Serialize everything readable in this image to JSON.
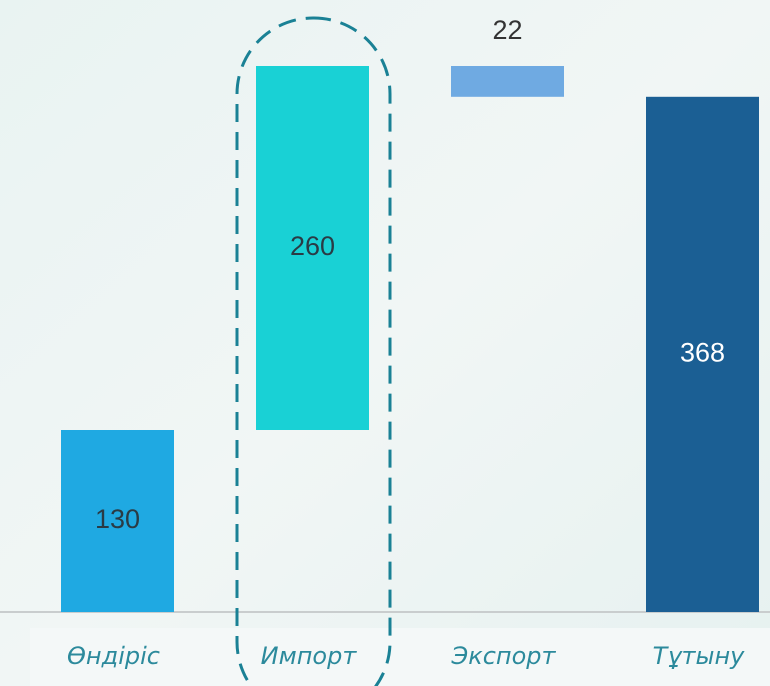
{
  "chart_data": {
    "type": "waterfall",
    "categories": [
      "Өндіріс",
      "Импорт",
      "Экспорт",
      "Тұтыну"
    ],
    "values": [
      130,
      260,
      -22,
      368
    ],
    "value_labels": [
      "130",
      "260",
      "22",
      "368"
    ],
    "measure": [
      "relative",
      "relative",
      "relative",
      "total"
    ],
    "colors": [
      "#1fa9e2",
      "#19d1d5",
      "#6faae2",
      "#1b5f94"
    ]
  }
}
